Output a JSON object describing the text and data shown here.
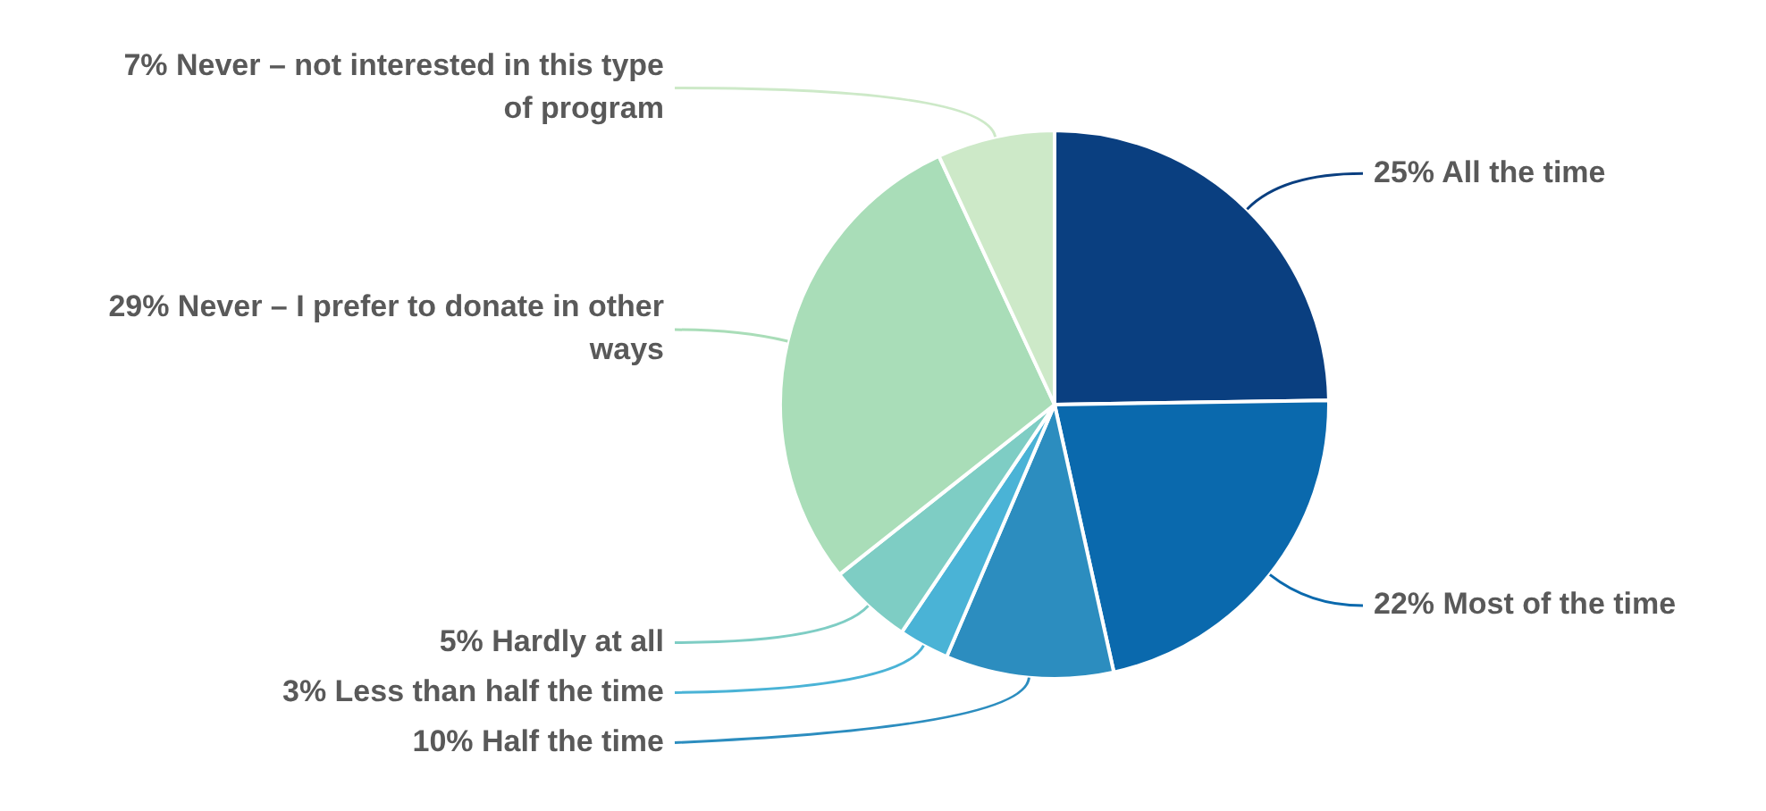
{
  "chart_data": {
    "type": "pie",
    "categories": [
      "All the time",
      "Most of the time",
      "Half the time",
      "Less than half the time",
      "Hardly at all",
      "Never – I prefer to donate in other ways",
      "Never – not interested in this type of program"
    ],
    "values": [
      25,
      22,
      10,
      3,
      5,
      29,
      7
    ],
    "value_labels": [
      "25%",
      "22%",
      "10%",
      "3%",
      "5%",
      "29%",
      "7%"
    ],
    "colors": [
      "#0a3f80",
      "#0a69ad",
      "#2c8dbf",
      "#4ab3d6",
      "#7ecdc4",
      "#a9ddb8",
      "#cde9c8"
    ],
    "legend": false
  }
}
